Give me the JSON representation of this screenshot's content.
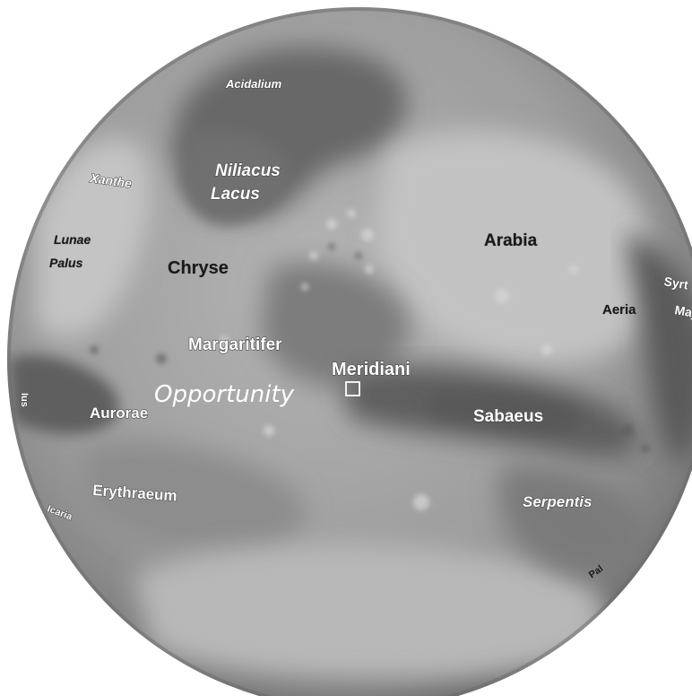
{
  "map": {
    "labels": {
      "acidalium": "Acidalium",
      "xanthe": "Xanthe",
      "niliacus_1": "Niliacus",
      "niliacus_2": "Lacus",
      "lunae_1": "Lunae",
      "lunae_2": "Palus",
      "chryse": "Chryse",
      "arabia": "Arabia",
      "syrtis": "Syrt",
      "aeria": "Aeria",
      "major": "Maj",
      "margaritifer": "Margaritifer",
      "meridiani": "Meridiani",
      "opportunity": "Opportunity",
      "aurorae": "Aurorae",
      "sabaeus": "Sabaeus",
      "erythraeum": "Erythraeum",
      "serpentis": "Serpentis",
      "left_edge": "Ius",
      "lower_left": "Icaria",
      "lower_right": "Pal"
    },
    "colors": {
      "globe_light": "#c9c9c9",
      "globe_mid": "#9b9b9b",
      "globe_dark": "#5e5e5e",
      "label_white": "#ffffff",
      "label_dark": "#1a1a1a"
    },
    "marker_icon": "square-site-marker-icon"
  }
}
